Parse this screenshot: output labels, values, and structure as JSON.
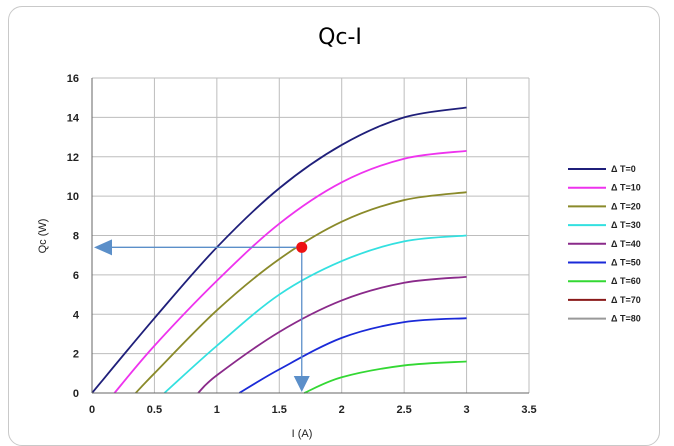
{
  "chart_data": {
    "type": "line",
    "title": "Qc-I",
    "xlabel": "I (A)",
    "ylabel": "Qc (W)",
    "xlim": [
      0,
      3.5
    ],
    "ylim": [
      0,
      16
    ],
    "x_ticks": [
      "0",
      "0.5",
      "1",
      "1.5",
      "2",
      "2.5",
      "3",
      "3.5"
    ],
    "y_ticks": [
      "0",
      "2",
      "4",
      "6",
      "8",
      "10",
      "12",
      "14",
      "16"
    ],
    "grid": true,
    "legend_position": "right",
    "series": [
      {
        "name": "Δ T=0",
        "color": "#1f1f7a",
        "x": [
          0,
          0.5,
          1,
          1.5,
          2,
          2.5,
          3
        ],
        "y": [
          0,
          3.8,
          7.4,
          10.4,
          12.6,
          14.0,
          14.5
        ]
      },
      {
        "name": "Δ T=10",
        "color": "#ee33ee",
        "x": [
          0.18,
          0.5,
          1,
          1.5,
          2,
          2.5,
          3
        ],
        "y": [
          0,
          2.4,
          5.7,
          8.6,
          10.7,
          11.9,
          12.3
        ]
      },
      {
        "name": "Δ T=20",
        "color": "#8a8a2a",
        "x": [
          0.35,
          0.5,
          1,
          1.5,
          2,
          2.5,
          3
        ],
        "y": [
          0,
          1.0,
          4.2,
          6.8,
          8.7,
          9.8,
          10.2
        ]
      },
      {
        "name": "Δ T=30",
        "color": "#33e0e0",
        "x": [
          0.58,
          1,
          1.5,
          2,
          2.5,
          3
        ],
        "y": [
          0,
          2.4,
          5.0,
          6.7,
          7.7,
          8.0
        ]
      },
      {
        "name": "Δ T=40",
        "color": "#8a2a8a",
        "x": [
          0.85,
          1,
          1.5,
          2,
          2.5,
          3
        ],
        "y": [
          0,
          0.9,
          3.1,
          4.7,
          5.6,
          5.9
        ]
      },
      {
        "name": "Δ T=50",
        "color": "#1a2ad8",
        "x": [
          1.18,
          1.5,
          2,
          2.5,
          3
        ],
        "y": [
          0,
          1.2,
          2.8,
          3.6,
          3.8
        ]
      },
      {
        "name": "Δ T=60",
        "color": "#33d833",
        "x": [
          1.7,
          2,
          2.5,
          3
        ],
        "y": [
          0,
          0.8,
          1.4,
          1.6
        ]
      },
      {
        "name": "Δ T=70",
        "color": "#8a1a1a",
        "x": [],
        "y": []
      },
      {
        "name": "Δ T=80",
        "color": "#999999",
        "x": [],
        "y": []
      }
    ],
    "annotation": {
      "point": {
        "x": 1.68,
        "y": 7.4,
        "color": "#ee1111"
      },
      "arrow_color": "#5b8fc9"
    }
  }
}
